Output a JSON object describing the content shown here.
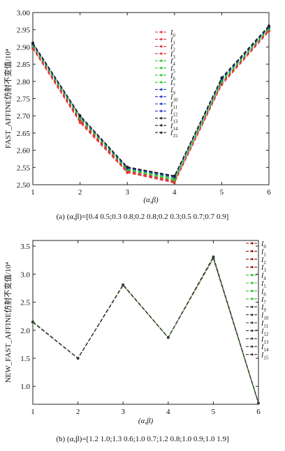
{
  "chart_data": [
    {
      "type": "line",
      "ylabel": "FAST_AFFINE仿射不变值/10⁴",
      "xlabel": "(α,β)",
      "caption": "(a) (α,β)=[0.4 0.5;0.3 0.8;0.2 0.8;0.2 0.3;0.5 0.7;0.7 0.9]",
      "x": [
        1,
        2,
        3,
        4,
        5,
        6
      ],
      "xlim": [
        1,
        6
      ],
      "ylim": [
        2.5,
        3.0
      ],
      "yticks": [
        "2.50",
        "2.55",
        "2.60",
        "2.65",
        "2.70",
        "2.75",
        "2.80",
        "2.85",
        "2.90",
        "2.95",
        "3.00"
      ],
      "xticks": [
        "1",
        "2",
        "3",
        "4",
        "5",
        "6"
      ],
      "legend_position": "right",
      "series": [
        {
          "name": "I0",
          "sub": "0",
          "color": "#e0323a",
          "values": [
            2.895,
            2.68,
            2.535,
            2.505,
            2.79,
            2.945
          ]
        },
        {
          "name": "I1",
          "sub": "1",
          "color": "#e0323a",
          "values": [
            2.897,
            2.683,
            2.537,
            2.507,
            2.792,
            2.947
          ]
        },
        {
          "name": "I2",
          "sub": "2",
          "color": "#e0323a",
          "values": [
            2.899,
            2.686,
            2.539,
            2.509,
            2.794,
            2.949
          ]
        },
        {
          "name": "I3",
          "sub": "3",
          "color": "#e0323a",
          "values": [
            2.901,
            2.689,
            2.541,
            2.511,
            2.796,
            2.951
          ]
        },
        {
          "name": "I4",
          "sub": "4",
          "color": "#2fbf2f",
          "values": [
            2.903,
            2.692,
            2.543,
            2.513,
            2.798,
            2.952
          ]
        },
        {
          "name": "I5",
          "sub": "5",
          "color": "#2fbf2f",
          "values": [
            2.905,
            2.694,
            2.545,
            2.516,
            2.8,
            2.954
          ]
        },
        {
          "name": "I6",
          "sub": "6",
          "color": "#2fbf2f",
          "values": [
            2.906,
            2.696,
            2.546,
            2.518,
            2.802,
            2.955
          ]
        },
        {
          "name": "I7",
          "sub": "7",
          "color": "#2fbf2f",
          "values": [
            2.907,
            2.697,
            2.547,
            2.52,
            2.804,
            2.956
          ]
        },
        {
          "name": "I9",
          "sub": "9",
          "color": "#2438c8",
          "values": [
            2.908,
            2.698,
            2.548,
            2.522,
            2.806,
            2.957
          ]
        },
        {
          "name": "I10",
          "sub": "10",
          "color": "#2438c8",
          "values": [
            2.909,
            2.699,
            2.549,
            2.523,
            2.807,
            2.958
          ]
        },
        {
          "name": "I11",
          "sub": "11",
          "color": "#2438c8",
          "values": [
            2.91,
            2.7,
            2.55,
            2.524,
            2.808,
            2.959
          ]
        },
        {
          "name": "I12",
          "sub": "12",
          "color": "#2438c8",
          "values": [
            2.911,
            2.7,
            2.55,
            2.525,
            2.809,
            2.96
          ]
        },
        {
          "name": "I13",
          "sub": "13",
          "color": "#222222",
          "values": [
            2.911,
            2.7,
            2.551,
            2.525,
            2.81,
            2.96
          ]
        },
        {
          "name": "I14",
          "sub": "14",
          "color": "#222222",
          "values": [
            2.912,
            2.701,
            2.551,
            2.526,
            2.811,
            2.961
          ]
        },
        {
          "name": "I15",
          "sub": "15",
          "color": "#222222",
          "values": [
            2.912,
            2.701,
            2.552,
            2.526,
            2.811,
            2.962
          ]
        }
      ]
    },
    {
      "type": "line",
      "ylabel": "NEW_FAST_AFFINE仿射不变值/10⁴",
      "xlabel": "(α,β)",
      "caption": "(b) (α,β)=[1.2 1.0;1.3 0.6;1.0 0.7;1.2 0.8;1.0 0.9;1.0 1.9]",
      "x": [
        1,
        2,
        3,
        4,
        5,
        6
      ],
      "xlim": [
        1,
        6
      ],
      "ylim": [
        0.68,
        3.6
      ],
      "yticks": [
        "1.0",
        "1.5",
        "2.0",
        "2.5",
        "3.0",
        "3.5"
      ],
      "xticks": [
        "1",
        "2",
        "3",
        "4",
        "5",
        "6"
      ],
      "legend_position": "right",
      "series": [
        {
          "name": "I0",
          "sub": "0",
          "color": "#8b1a1a",
          "values": [
            2.14,
            1.5,
            2.8,
            1.87,
            3.28,
            0.7
          ]
        },
        {
          "name": "I1",
          "sub": "1",
          "color": "#8b1a1a",
          "values": [
            2.14,
            1.5,
            2.8,
            1.87,
            3.28,
            0.7
          ]
        },
        {
          "name": "I2",
          "sub": "2",
          "color": "#8b1a1a",
          "values": [
            2.14,
            1.5,
            2.8,
            1.87,
            3.28,
            0.7
          ]
        },
        {
          "name": "I3",
          "sub": "3",
          "color": "#8b1a1a",
          "values": [
            2.14,
            1.5,
            2.8,
            1.87,
            3.29,
            0.7
          ]
        },
        {
          "name": "I4",
          "sub": "4",
          "color": "#2fbf2f",
          "values": [
            2.14,
            1.5,
            2.8,
            1.87,
            3.29,
            0.7
          ]
        },
        {
          "name": "I5",
          "sub": "5",
          "color": "#2fbf2f",
          "values": [
            2.14,
            1.5,
            2.81,
            1.87,
            3.29,
            0.7
          ]
        },
        {
          "name": "I6",
          "sub": "6",
          "color": "#2fbf2f",
          "values": [
            2.15,
            1.5,
            2.81,
            1.87,
            3.29,
            0.7
          ]
        },
        {
          "name": "I7",
          "sub": "7",
          "color": "#2fbf2f",
          "values": [
            2.15,
            1.5,
            2.81,
            1.87,
            3.29,
            0.7
          ]
        },
        {
          "name": "I9",
          "sub": "9",
          "color": "#3a3a3a",
          "values": [
            2.15,
            1.5,
            2.81,
            1.87,
            3.3,
            0.7
          ]
        },
        {
          "name": "I10",
          "sub": "10",
          "color": "#3a3a3a",
          "values": [
            2.15,
            1.5,
            2.81,
            1.87,
            3.3,
            0.7
          ]
        },
        {
          "name": "I11",
          "sub": "11",
          "color": "#3a3a3a",
          "values": [
            2.15,
            1.5,
            2.81,
            1.87,
            3.3,
            0.7
          ]
        },
        {
          "name": "I12",
          "sub": "12",
          "color": "#3a3a3a",
          "values": [
            2.15,
            1.5,
            2.81,
            1.87,
            3.3,
            0.7
          ]
        },
        {
          "name": "I13",
          "sub": "13",
          "color": "#3a3a3a",
          "values": [
            2.15,
            1.5,
            2.81,
            1.87,
            3.3,
            0.7
          ]
        },
        {
          "name": "I14",
          "sub": "14",
          "color": "#3a3a3a",
          "values": [
            2.15,
            1.5,
            2.81,
            1.87,
            3.31,
            0.7
          ]
        },
        {
          "name": "I15",
          "sub": "15",
          "color": "#3a3a3a",
          "values": [
            2.15,
            1.5,
            2.81,
            1.87,
            3.31,
            0.7
          ]
        }
      ]
    }
  ]
}
